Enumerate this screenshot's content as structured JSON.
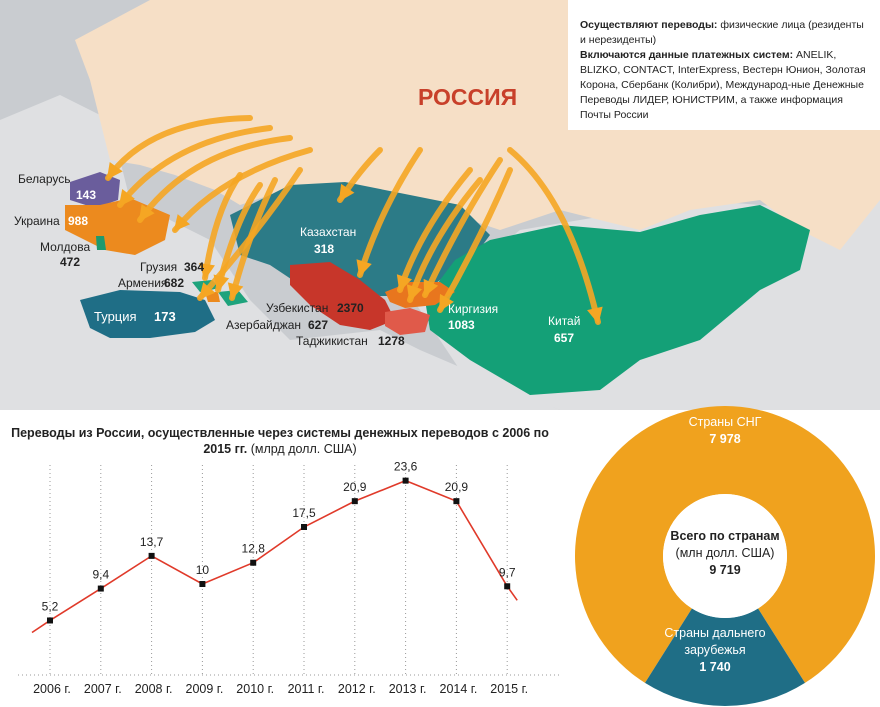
{
  "info": {
    "line1_bold": "Осуществляют переводы:",
    "line1_rest": " физические лица (резиденты и нерезиденты)",
    "line2_bold": "Включаются данные платежных систем:",
    "line2_rest": " ANELIK, BLIZKO, CONTACT, InterExpress, Вестерн Юнион, Золотая Корона, Сбербанк (Колибри), Международ-ные Денежные Переводы ЛИДЕР, ЮНИСТРИМ, а также информация Почты России"
  },
  "map": {
    "russia_label": "РОССИЯ",
    "countries": [
      {
        "name": "Беларусь",
        "value": "143",
        "color": "#6a5d9c"
      },
      {
        "name": "Украина",
        "value": "988",
        "color": "#ec8a1e"
      },
      {
        "name": "Молдова",
        "value": "472",
        "color": "#1e9a6e"
      },
      {
        "name": "Грузия",
        "value": "364",
        "color": "#1ea37c"
      },
      {
        "name": "Армения",
        "value": "682",
        "color": "#ec8a1e"
      },
      {
        "name": "Турция",
        "value": "173",
        "color": "#1f6e86"
      },
      {
        "name": "Азербайджан",
        "value": "627",
        "color": "#1ea37c"
      },
      {
        "name": "Казахстан",
        "value": "318",
        "color": "#2c7b87"
      },
      {
        "name": "Узбекистан",
        "value": "2370",
        "color": "#c7362a"
      },
      {
        "name": "Таджикистан",
        "value": "1278",
        "color": "#e05a4a"
      },
      {
        "name": "Киргизия",
        "value": "1083",
        "color": "#e8761e"
      },
      {
        "name": "Китай",
        "value": "657",
        "color": "#14a077"
      }
    ]
  },
  "chart_title": {
    "bold": "Переводы из России, осуществленные через системы денежных переводов с 2006 по 2015 гг.",
    "rest": " (млрд долл. США)"
  },
  "chart_data": [
    {
      "type": "line",
      "title": "Переводы из России, осуществленные через системы денежных переводов с 2006 по 2015 гг. (млрд долл. США)",
      "categories": [
        "2006 г.",
        "2007 г.",
        "2008 г.",
        "2009 г.",
        "2010 г.",
        "2011 г.",
        "2012 г.",
        "2013 г.",
        "2014 г.",
        "2015 г."
      ],
      "value_labels": [
        "5,2",
        "9,4",
        "13,7",
        "10",
        "12,8",
        "17,5",
        "20,9",
        "23,6",
        "20,9",
        "9,7"
      ],
      "values": [
        5.2,
        9.4,
        13.7,
        10,
        12.8,
        17.5,
        20.9,
        23.6,
        20.9,
        9.7
      ],
      "ylim": [
        0,
        25
      ],
      "line_color": "#e03a2a",
      "grid": "vertical dotted"
    },
    {
      "type": "pie",
      "title": "Всего по странам",
      "unit": "(млн долл. США)",
      "total_label": "9 719",
      "total": 9719,
      "slices": [
        {
          "name": "Страны СНГ",
          "value": 7978,
          "label": "7 978",
          "color": "#f0a21e"
        },
        {
          "name": "Страны дальнего зарубежья",
          "value": 1740,
          "label": "1 740",
          "color": "#1f6e86"
        }
      ]
    }
  ]
}
